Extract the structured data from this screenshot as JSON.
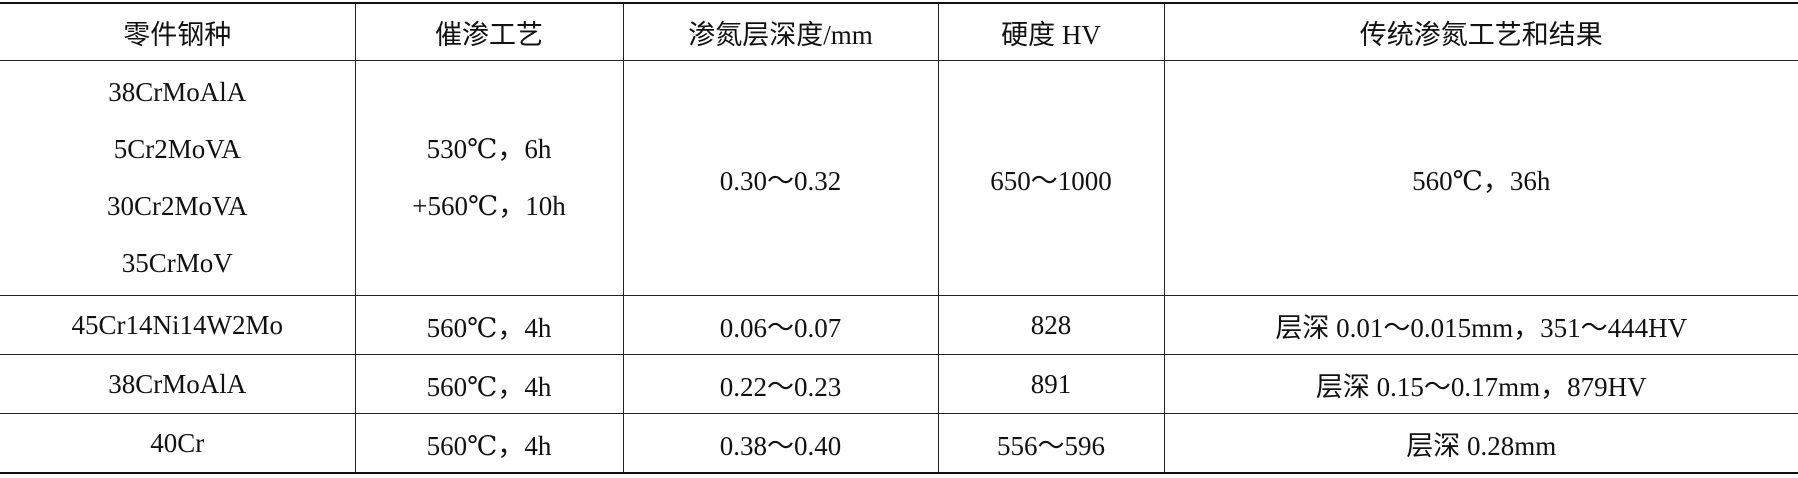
{
  "table": {
    "headers": [
      "零件钢种",
      "催渗工艺",
      "渗氮层深度/mm",
      "硬度 HV",
      "传统渗氮工艺和结果"
    ],
    "rows": [
      [
        [
          "38CrMoAlA",
          "5Cr2MoVA",
          "30Cr2MoVA",
          "35CrMoV"
        ],
        [
          "530℃，6h",
          "+560℃，10h"
        ],
        "0.30～0.32",
        "650～1000",
        "560℃，36h"
      ],
      [
        "45Cr14Ni14W2Mo",
        "560℃，4h",
        "0.06～0.07",
        "828",
        "层深 0.01～0.015mm，351～444HV"
      ],
      [
        "38CrMoAlA",
        "560℃，4h",
        "0.22～0.23",
        "891",
        "层深 0.15～0.17mm，879HV"
      ],
      [
        "40Cr",
        "560℃，4h",
        "0.38～0.40",
        "556～596",
        "层深 0.28mm"
      ]
    ]
  }
}
